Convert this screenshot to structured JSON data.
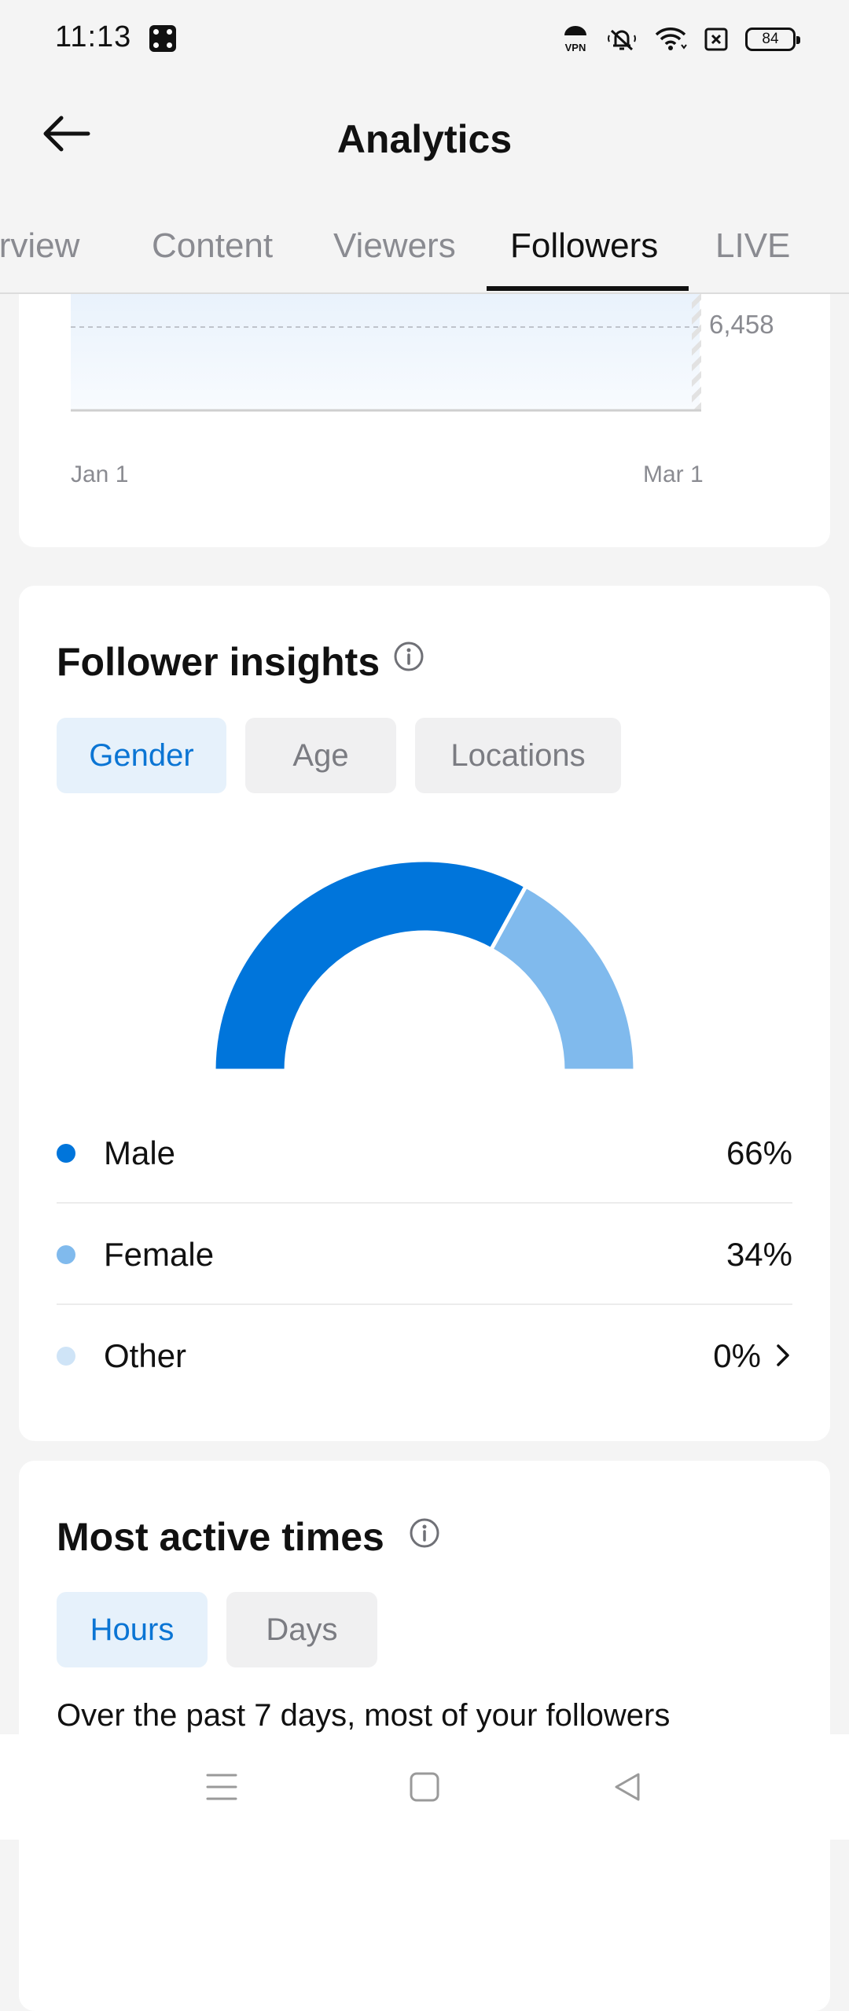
{
  "status_bar": {
    "time": "11:13",
    "icons": [
      "dice-icon",
      "vpn-icon",
      "muted-bell-icon",
      "wifi-icon",
      "sim-off-icon",
      "battery-icon"
    ],
    "battery": "84"
  },
  "header": {
    "title": "Analytics",
    "back_icon": "arrow-left-icon"
  },
  "tabs": [
    {
      "label": "Overview",
      "active": false
    },
    {
      "label": "Content",
      "active": false
    },
    {
      "label": "Viewers",
      "active": false
    },
    {
      "label": "Followers",
      "active": true
    },
    {
      "label": "LIVE",
      "active": false
    }
  ],
  "followers_chart": {
    "value_label": "6,458",
    "x_start": "Jan 1",
    "x_end": "Mar 1"
  },
  "insights": {
    "title": "Follower insights",
    "filters": [
      {
        "label": "Gender",
        "active": true
      },
      {
        "label": "Age",
        "active": false
      },
      {
        "label": "Locations",
        "active": false
      }
    ],
    "chart_data": {
      "type": "pie",
      "shape": "semi-donut",
      "categories": [
        "Male",
        "Female",
        "Other"
      ],
      "values": [
        66,
        34,
        0
      ],
      "colors": [
        "#0075db",
        "#80baed",
        "#cfe4f7"
      ]
    },
    "legend": [
      {
        "label": "Male",
        "value": "66%",
        "color": "#0075db"
      },
      {
        "label": "Female",
        "value": "34%",
        "color": "#80baed"
      },
      {
        "label": "Other",
        "value": "0%",
        "color": "#cfe4f7",
        "has_chevron": true
      }
    ]
  },
  "active_times": {
    "title": "Most active times",
    "filters": [
      {
        "label": "Hours",
        "active": true
      },
      {
        "label": "Days",
        "active": false
      }
    ],
    "description": "Over the past 7 days, most of your followers"
  },
  "nav": {
    "icons": [
      "menu-icon",
      "home-square-icon",
      "back-triangle-icon"
    ]
  },
  "colors": {
    "accent": "#0b75d4",
    "accent_light": "#e6f1fb"
  }
}
